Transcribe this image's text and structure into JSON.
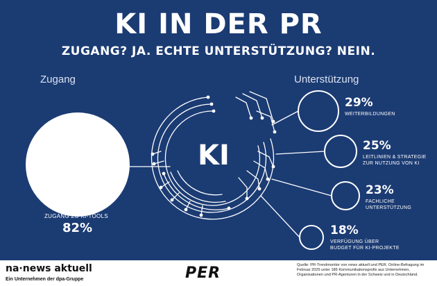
{
  "header": {
    "title": "KI IN DER PR",
    "subtitle": "ZUGANG? JA. ECHTE UNTERSTÜTZUNG? NEIN."
  },
  "left": {
    "section_label": "Zugang",
    "item_label": "ZUGANG ZU KI-TOOLS",
    "value": "82%"
  },
  "center": {
    "label": "KI"
  },
  "right": {
    "section_label": "Unterstützung",
    "items": [
      {
        "value": "29%",
        "label_line1": "WEITERBILDUNGEN",
        "label_line2": ""
      },
      {
        "value": "25%",
        "label_line1": "LEITLINIEN & STRATEGIE",
        "label_line2": "ZUR NUTZUNG VON KI"
      },
      {
        "value": "23%",
        "label_line1": "FACHLICHE",
        "label_line2": "UNTERSTÜTZUNG"
      },
      {
        "value": "18%",
        "label_line1": "VERFÜGUNG ÜBER",
        "label_line2": "BUDGET FÜR KI-PROJEKTE"
      }
    ]
  },
  "footer": {
    "logo_na": "na·news aktuell",
    "logo_na_sub": "Ein Unternehmen der dpa-Gruppe",
    "logo_per": "PER",
    "source": "Quelle: PR-Trendmonitor von news aktuell und PER. Online-Befragung im Februar 2025 unter 186 Kommunikationsprofis aus Unternehmen, Organisationen und PR-Agenturen in der Schweiz und in Deutschland."
  },
  "colors": {
    "background": "#1b3b73",
    "text": "#ffffff",
    "footer_bg": "#ffffff"
  }
}
